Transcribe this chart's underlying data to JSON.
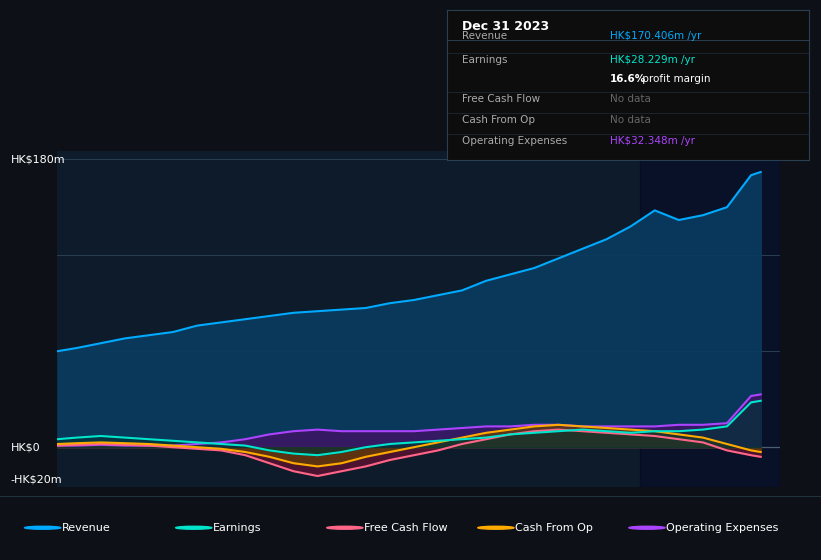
{
  "bg_color": "#0d1117",
  "plot_bg_color": "#0d1b2a",
  "grid_color": "#1e2d3d",
  "tooltip": {
    "title": "Dec 31 2023",
    "revenue_label": "Revenue",
    "revenue_value": "HK$170.406m /yr",
    "earnings_label": "Earnings",
    "earnings_value": "HK$28.229m /yr",
    "profit_margin": "16.6% profit margin",
    "fcf_label": "Free Cash Flow",
    "fcf_value": "No data",
    "cashfromop_label": "Cash From Op",
    "cashfromop_value": "No data",
    "opex_label": "Operating Expenses",
    "opex_value": "HK$32.348m /yr"
  },
  "revenue_color": "#00aaff",
  "earnings_color": "#00e5cc",
  "fcf_color": "#ff6688",
  "cashfromop_color": "#ffaa00",
  "opex_color": "#aa44ff",
  "ylabel_180": "HK$180m",
  "ylabel_0": "HK$0",
  "ylabel_neg20": "-HK$20m",
  "ylim": [
    -25,
    185
  ],
  "xlim": [
    2016.8,
    2024.3
  ],
  "x_ticks": [
    2017,
    2018,
    2019,
    2020,
    2021,
    2022,
    2023
  ],
  "revenue": {
    "x": [
      2016.8,
      2017.0,
      2017.25,
      2017.5,
      2017.75,
      2018.0,
      2018.25,
      2018.5,
      2018.75,
      2019.0,
      2019.25,
      2019.5,
      2019.75,
      2020.0,
      2020.25,
      2020.5,
      2020.75,
      2021.0,
      2021.25,
      2021.5,
      2021.75,
      2022.0,
      2022.25,
      2022.5,
      2022.75,
      2023.0,
      2023.25,
      2023.5,
      2023.75,
      2024.0,
      2024.1
    ],
    "y": [
      60,
      62,
      65,
      68,
      70,
      72,
      76,
      78,
      80,
      82,
      84,
      85,
      86,
      87,
      90,
      92,
      95,
      98,
      104,
      108,
      112,
      118,
      124,
      130,
      138,
      148,
      142,
      145,
      150,
      170,
      172
    ]
  },
  "earnings": {
    "x": [
      2016.8,
      2017.0,
      2017.25,
      2017.5,
      2017.75,
      2018.0,
      2018.25,
      2018.5,
      2018.75,
      2019.0,
      2019.25,
      2019.5,
      2019.75,
      2020.0,
      2020.25,
      2020.5,
      2020.75,
      2021.0,
      2021.25,
      2021.5,
      2021.75,
      2022.0,
      2022.25,
      2022.5,
      2022.75,
      2023.0,
      2023.25,
      2023.5,
      2023.75,
      2024.0,
      2024.1
    ],
    "y": [
      5,
      6,
      7,
      6,
      5,
      4,
      3,
      2,
      1,
      -2,
      -4,
      -5,
      -3,
      0,
      2,
      3,
      4,
      5,
      6,
      8,
      9,
      10,
      11,
      10,
      9,
      10,
      10,
      11,
      13,
      28,
      29
    ]
  },
  "fcf": {
    "x": [
      2016.8,
      2017.0,
      2017.25,
      2017.5,
      2017.75,
      2018.0,
      2018.25,
      2018.5,
      2018.75,
      2019.0,
      2019.25,
      2019.5,
      2019.75,
      2020.0,
      2020.25,
      2020.5,
      2020.75,
      2021.0,
      2021.25,
      2021.5,
      2021.75,
      2022.0,
      2022.25,
      2022.5,
      2022.75,
      2023.0,
      2023.25,
      2023.5,
      2023.75,
      2024.0,
      2024.1
    ],
    "y": [
      1,
      1.5,
      2,
      1.5,
      1,
      0,
      -1,
      -2,
      -5,
      -10,
      -15,
      -18,
      -15,
      -12,
      -8,
      -5,
      -2,
      2,
      5,
      8,
      10,
      11,
      10,
      9,
      8,
      7,
      5,
      3,
      -2,
      -5,
      -6
    ]
  },
  "cashfromop": {
    "x": [
      2016.8,
      2017.0,
      2017.25,
      2017.5,
      2017.75,
      2018.0,
      2018.25,
      2018.5,
      2018.75,
      2019.0,
      2019.25,
      2019.5,
      2019.75,
      2020.0,
      2020.25,
      2020.5,
      2020.75,
      2021.0,
      2021.25,
      2021.5,
      2021.75,
      2022.0,
      2022.25,
      2022.5,
      2022.75,
      2023.0,
      2023.25,
      2023.5,
      2023.75,
      2024.0,
      2024.1
    ],
    "y": [
      2,
      2.5,
      3,
      2.5,
      2,
      1,
      0,
      -1,
      -3,
      -6,
      -10,
      -12,
      -10,
      -6,
      -3,
      0,
      3,
      6,
      9,
      11,
      13,
      14,
      13,
      12,
      11,
      10,
      8,
      6,
      2,
      -2,
      -3
    ]
  },
  "opex": {
    "x": [
      2016.8,
      2017.0,
      2017.25,
      2017.5,
      2017.75,
      2018.0,
      2018.25,
      2018.5,
      2018.75,
      2019.0,
      2019.25,
      2019.5,
      2019.75,
      2020.0,
      2020.25,
      2020.5,
      2020.75,
      2021.0,
      2021.25,
      2021.5,
      2021.75,
      2022.0,
      2022.25,
      2022.5,
      2022.75,
      2023.0,
      2023.25,
      2023.5,
      2023.75,
      2024.0,
      2024.1
    ],
    "y": [
      1,
      1,
      1.5,
      1,
      1,
      1,
      2,
      3,
      5,
      8,
      10,
      11,
      10,
      10,
      10,
      10,
      11,
      12,
      13,
      13,
      14,
      14,
      13,
      13,
      13,
      13,
      14,
      14,
      15,
      32,
      33
    ]
  },
  "legend": [
    {
      "label": "Revenue",
      "color": "#00aaff"
    },
    {
      "label": "Earnings",
      "color": "#00e5cc"
    },
    {
      "label": "Free Cash Flow",
      "color": "#ff6688"
    },
    {
      "label": "Cash From Op",
      "color": "#ffaa00"
    },
    {
      "label": "Operating Expenses",
      "color": "#aa44ff"
    }
  ]
}
